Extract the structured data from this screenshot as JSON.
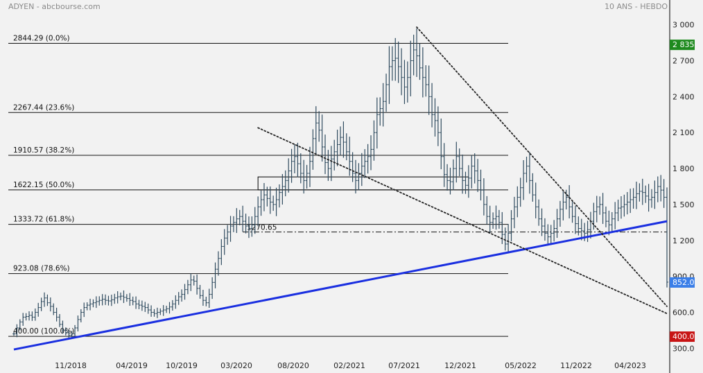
{
  "header": {
    "title": "ADYEN - abcbourse.com",
    "period": "10 ANS - HEBDO"
  },
  "chart_data": {
    "type": "ohlc",
    "series": [
      {
        "values": [
          [
            0,
            420
          ],
          [
            1,
            470
          ],
          [
            2,
            520
          ],
          [
            3,
            560
          ],
          [
            4,
            565
          ],
          [
            5,
            575
          ],
          [
            6,
            560
          ],
          [
            7,
            600
          ],
          [
            8,
            640
          ],
          [
            9,
            690
          ],
          [
            10,
            720
          ],
          [
            11,
            680
          ],
          [
            12,
            650
          ],
          [
            13,
            600
          ],
          [
            14,
            560
          ],
          [
            15,
            500
          ],
          [
            16,
            450
          ],
          [
            17,
            430
          ],
          [
            18,
            410
          ],
          [
            19,
            420
          ],
          [
            20,
            470
          ],
          [
            21,
            540
          ],
          [
            22,
            600
          ],
          [
            23,
            640
          ],
          [
            24,
            660
          ],
          [
            25,
            670
          ],
          [
            26,
            680
          ],
          [
            27,
            690
          ],
          [
            28,
            700
          ],
          [
            29,
            710
          ],
          [
            30,
            700
          ],
          [
            31,
            695
          ],
          [
            32,
            705
          ],
          [
            33,
            720
          ],
          [
            34,
            730
          ],
          [
            35,
            735
          ],
          [
            36,
            725
          ],
          [
            37,
            715
          ],
          [
            38,
            700
          ],
          [
            39,
            690
          ],
          [
            40,
            670
          ],
          [
            41,
            660
          ],
          [
            42,
            650
          ],
          [
            43,
            640
          ],
          [
            44,
            620
          ],
          [
            45,
            600
          ],
          [
            46,
            590
          ],
          [
            47,
            600
          ],
          [
            48,
            610
          ],
          [
            49,
            620
          ],
          [
            50,
            630
          ],
          [
            51,
            645
          ],
          [
            52,
            670
          ],
          [
            53,
            700
          ],
          [
            54,
            730
          ],
          [
            55,
            750
          ],
          [
            56,
            790
          ],
          [
            57,
            830
          ],
          [
            58,
            870
          ],
          [
            59,
            860
          ],
          [
            60,
            800
          ],
          [
            61,
            740
          ],
          [
            62,
            700
          ],
          [
            63,
            680
          ],
          [
            64,
            750
          ],
          [
            65,
            850
          ],
          [
            66,
            960
          ],
          [
            67,
            1050
          ],
          [
            68,
            1150
          ],
          [
            69,
            1220
          ],
          [
            70,
            1270
          ],
          [
            71,
            1320
          ],
          [
            72,
            1350
          ],
          [
            73,
            1380
          ],
          [
            74,
            1400
          ],
          [
            75,
            1360
          ],
          [
            76,
            1320
          ],
          [
            77,
            1300
          ],
          [
            78,
            1330
          ],
          [
            79,
            1400
          ],
          [
            80,
            1480
          ],
          [
            81,
            1540
          ],
          [
            82,
            1580
          ],
          [
            83,
            1550
          ],
          [
            84,
            1520
          ],
          [
            85,
            1500
          ],
          [
            86,
            1540
          ],
          [
            87,
            1600
          ],
          [
            88,
            1650
          ],
          [
            89,
            1700
          ],
          [
            90,
            1780
          ],
          [
            91,
            1860
          ],
          [
            92,
            1900
          ],
          [
            93,
            1840
          ],
          [
            94,
            1760
          ],
          [
            95,
            1700
          ],
          [
            96,
            1760
          ],
          [
            97,
            1860
          ],
          [
            98,
            2050
          ],
          [
            99,
            2180
          ],
          [
            100,
            2120
          ],
          [
            101,
            1980
          ],
          [
            102,
            1850
          ],
          [
            103,
            1800
          ],
          [
            104,
            1880
          ],
          [
            105,
            1940
          ],
          [
            106,
            2000
          ],
          [
            107,
            2060
          ],
          [
            108,
            2020
          ],
          [
            109,
            1940
          ],
          [
            110,
            1860
          ],
          [
            111,
            1760
          ],
          [
            112,
            1700
          ],
          [
            113,
            1760
          ],
          [
            114,
            1820
          ],
          [
            115,
            1860
          ],
          [
            116,
            1900
          ],
          [
            117,
            1960
          ],
          [
            118,
            2100
          ],
          [
            119,
            2250
          ],
          [
            120,
            2300
          ],
          [
            121,
            2360
          ],
          [
            122,
            2500
          ],
          [
            123,
            2650
          ],
          [
            124,
            2700
          ],
          [
            125,
            2720
          ],
          [
            126,
            2650
          ],
          [
            127,
            2560
          ],
          [
            128,
            2480
          ],
          [
            129,
            2560
          ],
          [
            130,
            2700
          ],
          [
            131,
            2790
          ],
          [
            132,
            2740
          ],
          [
            133,
            2640
          ],
          [
            134,
            2560
          ],
          [
            135,
            2500
          ],
          [
            136,
            2400
          ],
          [
            137,
            2250
          ],
          [
            138,
            2200
          ],
          [
            139,
            2100
          ],
          [
            140,
            1900
          ],
          [
            141,
            1750
          ],
          [
            142,
            1700
          ],
          [
            143,
            1690
          ],
          [
            144,
            1800
          ],
          [
            145,
            1900
          ],
          [
            146,
            1800
          ],
          [
            147,
            1700
          ],
          [
            148,
            1660
          ],
          [
            149,
            1720
          ],
          [
            150,
            1820
          ],
          [
            151,
            1780
          ],
          [
            152,
            1700
          ],
          [
            153,
            1620
          ],
          [
            154,
            1500
          ],
          [
            155,
            1400
          ],
          [
            156,
            1350
          ],
          [
            157,
            1380
          ],
          [
            158,
            1400
          ],
          [
            159,
            1350
          ],
          [
            160,
            1250
          ],
          [
            161,
            1170
          ],
          [
            162,
            1260
          ],
          [
            163,
            1380
          ],
          [
            164,
            1480
          ],
          [
            165,
            1560
          ],
          [
            166,
            1640
          ],
          [
            167,
            1760
          ],
          [
            168,
            1820
          ],
          [
            169,
            1700
          ],
          [
            170,
            1580
          ],
          [
            171,
            1480
          ],
          [
            172,
            1380
          ],
          [
            173,
            1320
          ],
          [
            174,
            1260
          ],
          [
            175,
            1230
          ],
          [
            176,
            1260
          ],
          [
            177,
            1300
          ],
          [
            178,
            1380
          ],
          [
            179,
            1460
          ],
          [
            180,
            1520
          ],
          [
            181,
            1560
          ],
          [
            182,
            1480
          ],
          [
            183,
            1400
          ],
          [
            184,
            1340
          ],
          [
            185,
            1300
          ],
          [
            186,
            1280
          ],
          [
            187,
            1260
          ],
          [
            188,
            1290
          ],
          [
            189,
            1360
          ],
          [
            190,
            1440
          ],
          [
            191,
            1480
          ],
          [
            192,
            1500
          ],
          [
            193,
            1430
          ],
          [
            194,
            1360
          ],
          [
            195,
            1330
          ],
          [
            196,
            1380
          ],
          [
            197,
            1430
          ],
          [
            198,
            1470
          ],
          [
            199,
            1480
          ],
          [
            200,
            1500
          ],
          [
            201,
            1520
          ],
          [
            202,
            1540
          ],
          [
            203,
            1560
          ],
          [
            204,
            1590
          ],
          [
            205,
            1610
          ],
          [
            206,
            1600
          ],
          [
            207,
            1570
          ],
          [
            208,
            1540
          ],
          [
            209,
            1560
          ],
          [
            210,
            1600
          ],
          [
            211,
            1650
          ],
          [
            212,
            1620
          ],
          [
            213,
            1560
          ],
          [
            214,
            852
          ]
        ]
      }
    ],
    "x_labels": [
      "11/2018",
      "04/2019",
      "10/2019",
      "03/2020",
      "08/2020",
      "02/2021",
      "07/2021",
      "12/2021",
      "05/2022",
      "11/2022",
      "04/2023"
    ],
    "y_ticks": [
      300,
      600,
      900,
      1200,
      1500,
      1800,
      2100,
      2400,
      2700,
      3000
    ],
    "y_tick_labels": [
      "300.0",
      "600.0",
      "900.0",
      "1 200",
      "1 500",
      "1 800",
      "2 100",
      "2 400",
      "2 700",
      "3 000"
    ],
    "ylim": [
      250,
      3050
    ],
    "fib_levels": [
      {
        "value": 2844.29,
        "label": "2844.29  (0.0%)"
      },
      {
        "value": 2267.44,
        "label": "2267.44  (23.6%)"
      },
      {
        "value": 1910.57,
        "label": "1910.57  (38.2%)"
      },
      {
        "value": 1622.15,
        "label": "1622.15  (50.0%)"
      },
      {
        "value": 1333.72,
        "label": "1333.72  (61.8%)"
      },
      {
        "value": 923.08,
        "label": "923.08  (78.6%)"
      },
      {
        "value": 400.0,
        "label": "400.00  (100.0%)"
      }
    ],
    "support_line": {
      "value": 1270.65,
      "label": "1270.65"
    },
    "zone": {
      "from": 1622.15,
      "to": 1730
    },
    "trendlines": [
      {
        "style": "solid",
        "color": "#1a2fe0",
        "from": [
          0,
          290
        ],
        "to": [
          214,
          1360
        ]
      },
      {
        "style": "dotted",
        "color": "#222222",
        "from": [
          80,
          2140
        ],
        "to": [
          214,
          590
        ]
      },
      {
        "style": "dotted",
        "color": "#222222",
        "from": [
          132,
          2980
        ],
        "to": [
          214,
          650
        ]
      }
    ],
    "price_badges": [
      {
        "label": "2 835",
        "value": 2835,
        "color": "#1e8a1e"
      },
      {
        "label": "852.0",
        "value": 852,
        "color": "#3a7ee8"
      },
      {
        "label": "400.0",
        "value": 400,
        "color": "#c81414"
      }
    ],
    "bar_color": "#2e4a5e",
    "grid": false
  }
}
